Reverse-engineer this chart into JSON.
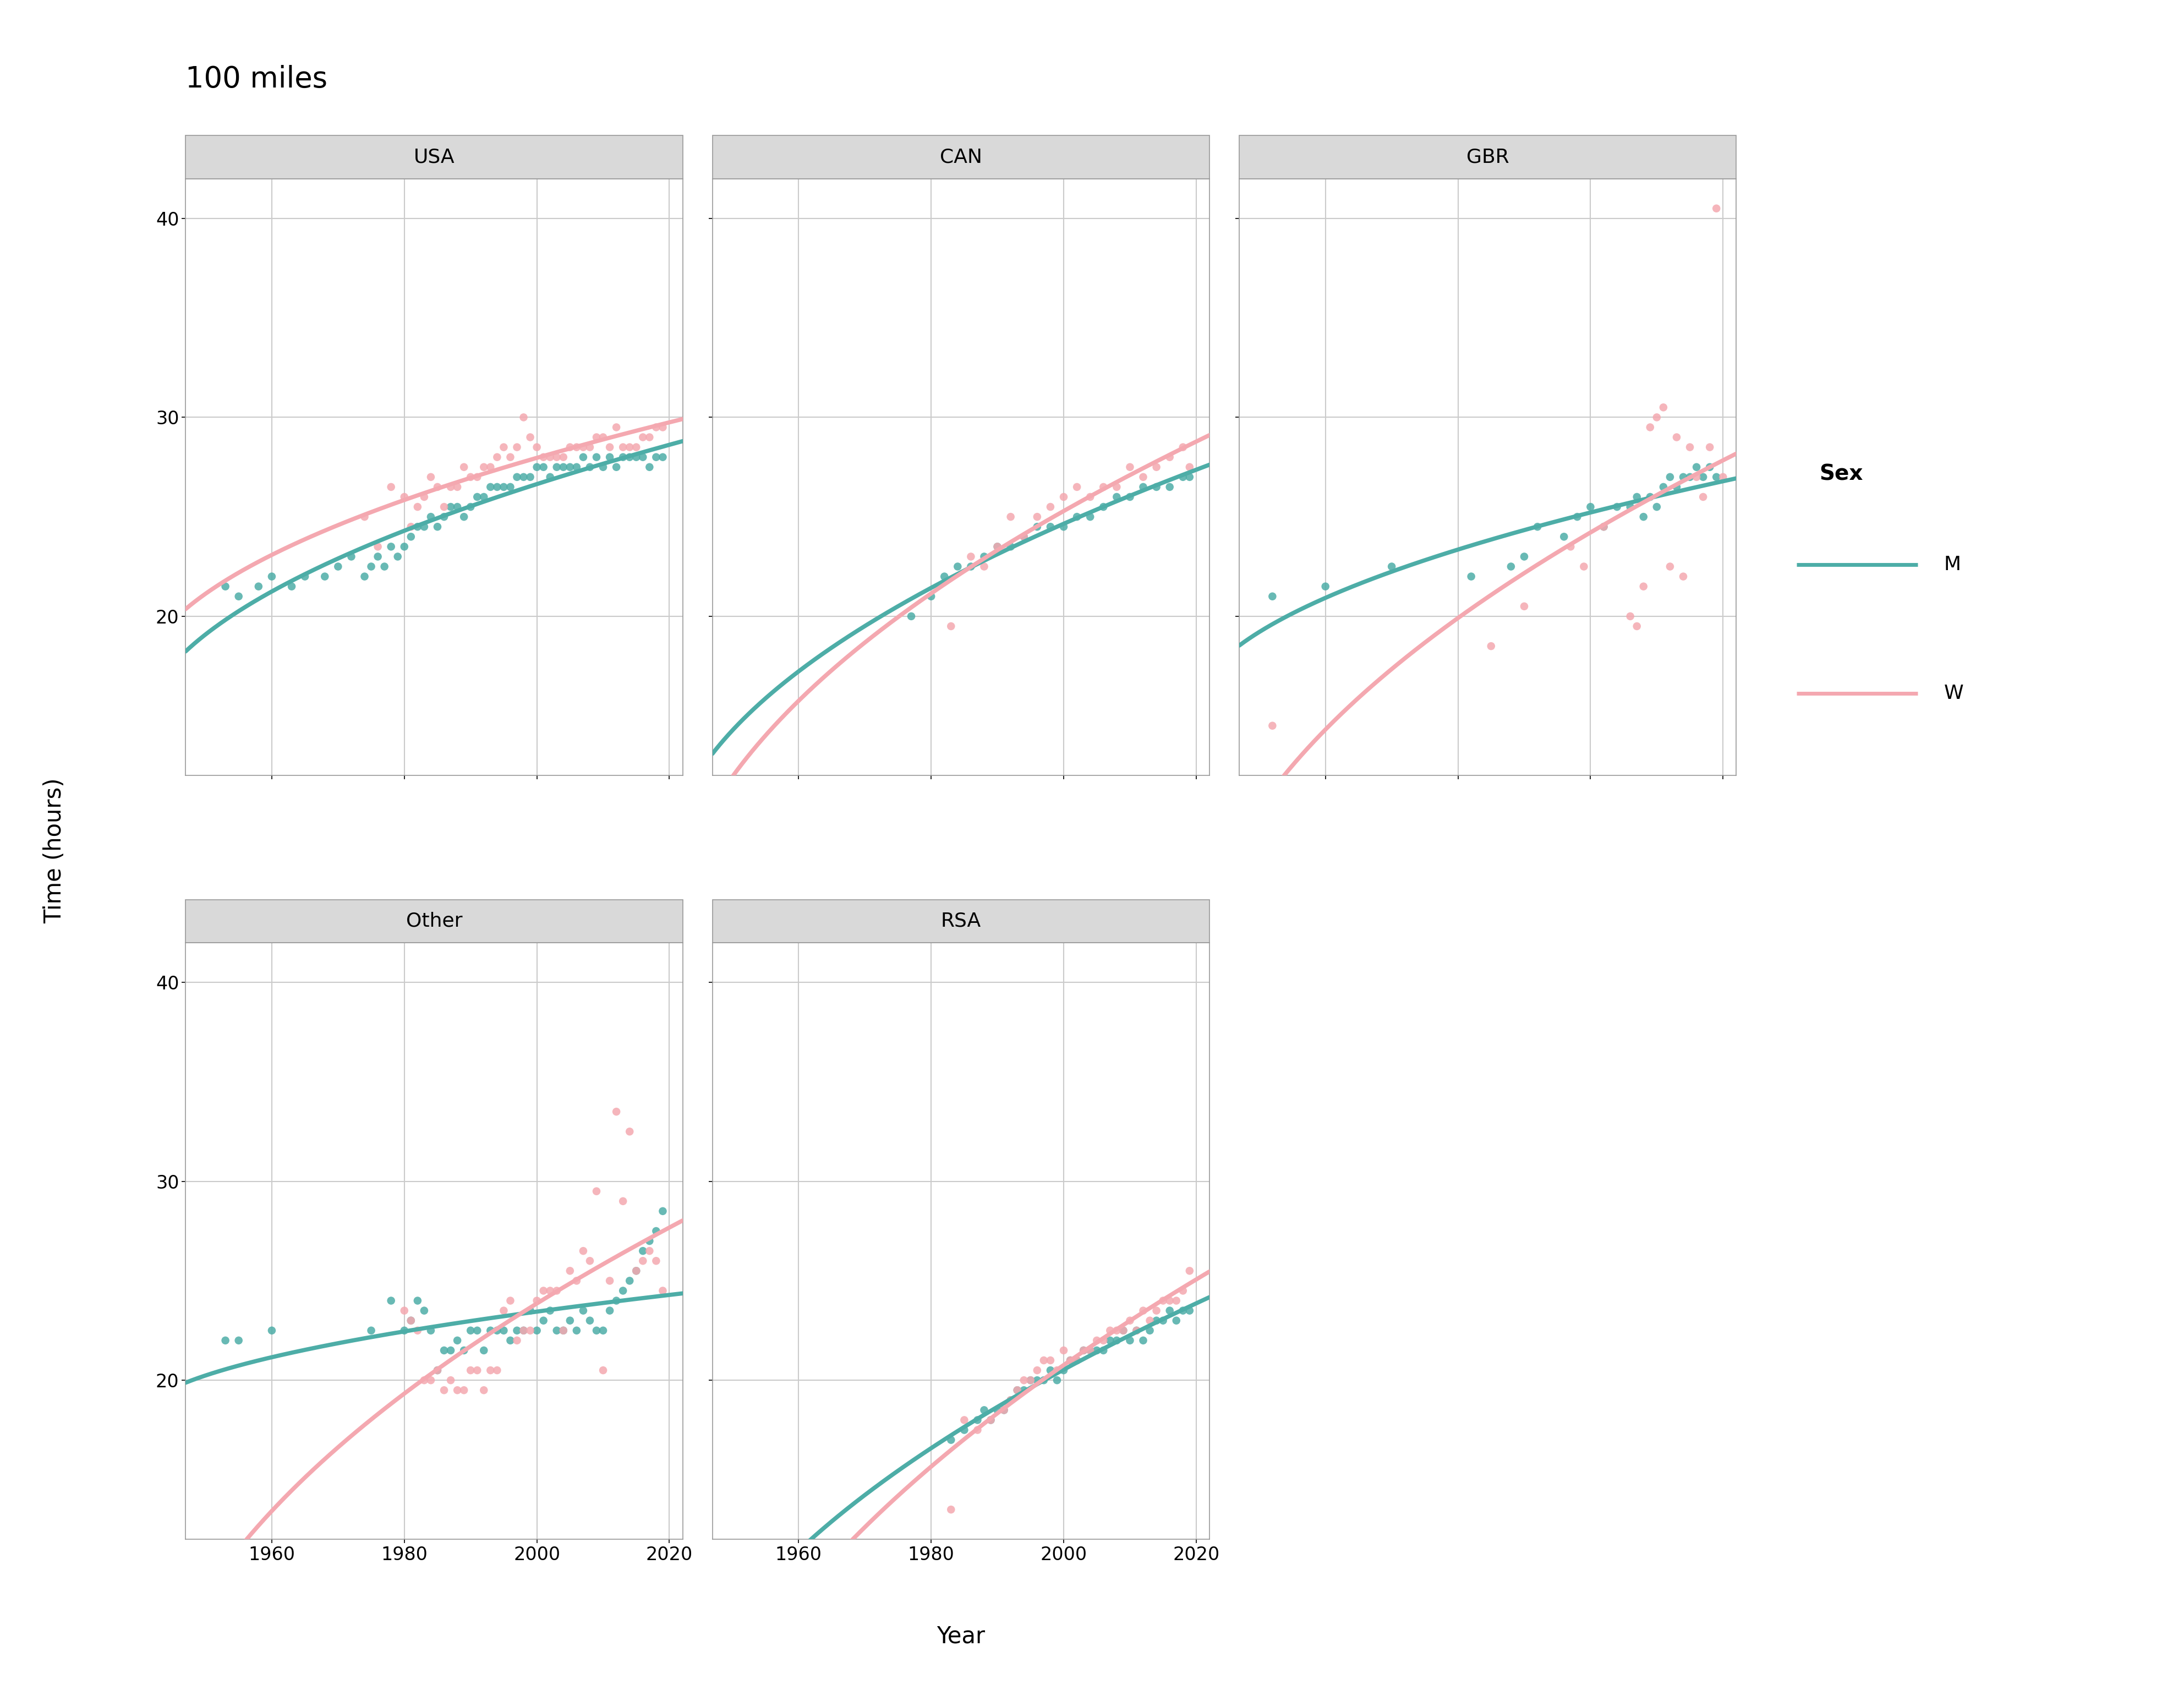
{
  "title": "100 miles",
  "xlabel": "Year",
  "ylabel": "Time (hours)",
  "color_M": "#4DADA7",
  "color_W": "#F4A8B0",
  "panel_bg": "#FFFFFF",
  "strip_bg": "#D9D9D9",
  "grid_color": "#CBCBCB",
  "fig_bg": "#FFFFFF",
  "xticks": [
    1960,
    1980,
    2000,
    2020
  ],
  "yticks": [
    20,
    30,
    40
  ],
  "ylim": [
    12,
    42
  ],
  "xlim": [
    1947,
    2022
  ],
  "legend_title": "Sex",
  "legend_entries": [
    "M",
    "W"
  ],
  "USA_M_x": [
    1953,
    1955,
    1958,
    1960,
    1963,
    1965,
    1968,
    1970,
    1972,
    1974,
    1975,
    1976,
    1977,
    1978,
    1979,
    1980,
    1981,
    1982,
    1983,
    1984,
    1985,
    1986,
    1987,
    1988,
    1989,
    1990,
    1991,
    1992,
    1993,
    1994,
    1995,
    1996,
    1997,
    1998,
    1999,
    2000,
    2001,
    2002,
    2003,
    2004,
    2005,
    2006,
    2007,
    2008,
    2009,
    2010,
    2011,
    2012,
    2013,
    2014,
    2015,
    2016,
    2017,
    2018,
    2019
  ],
  "USA_M_y": [
    21.5,
    21.0,
    21.5,
    22.0,
    21.5,
    22.0,
    22.0,
    22.5,
    23.0,
    22.0,
    22.5,
    23.0,
    22.5,
    23.5,
    23.0,
    23.5,
    24.0,
    24.5,
    24.5,
    25.0,
    24.5,
    25.0,
    25.5,
    25.5,
    25.0,
    25.5,
    26.0,
    26.0,
    26.5,
    26.5,
    26.5,
    26.5,
    27.0,
    27.0,
    27.0,
    27.5,
    27.5,
    27.0,
    27.5,
    27.5,
    27.5,
    27.5,
    28.0,
    27.5,
    28.0,
    27.5,
    28.0,
    27.5,
    28.0,
    28.0,
    28.0,
    28.0,
    27.5,
    28.0,
    28.0
  ],
  "USA_W_x": [
    1974,
    1976,
    1978,
    1980,
    1981,
    1982,
    1983,
    1984,
    1985,
    1986,
    1987,
    1988,
    1989,
    1990,
    1991,
    1992,
    1993,
    1994,
    1995,
    1996,
    1997,
    1998,
    1999,
    2000,
    2001,
    2002,
    2003,
    2004,
    2005,
    2006,
    2007,
    2008,
    2009,
    2010,
    2011,
    2012,
    2013,
    2014,
    2015,
    2016,
    2017,
    2018,
    2019
  ],
  "USA_W_y": [
    25.0,
    23.5,
    26.5,
    26.0,
    24.5,
    25.5,
    26.0,
    27.0,
    26.5,
    25.5,
    26.5,
    26.5,
    27.5,
    27.0,
    27.0,
    27.5,
    27.5,
    28.0,
    28.5,
    28.0,
    28.5,
    30.0,
    29.0,
    28.5,
    28.0,
    28.0,
    28.0,
    28.0,
    28.5,
    28.5,
    28.5,
    28.5,
    29.0,
    29.0,
    28.5,
    29.5,
    28.5,
    28.5,
    28.5,
    29.0,
    29.0,
    29.5,
    29.5
  ],
  "CAN_M_x": [
    1977,
    1980,
    1982,
    1984,
    1986,
    1988,
    1990,
    1992,
    1994,
    1996,
    1998,
    2000,
    2002,
    2004,
    2006,
    2008,
    2010,
    2012,
    2014,
    2016,
    2018,
    2019
  ],
  "CAN_M_y": [
    20.0,
    21.0,
    22.0,
    22.5,
    22.5,
    23.0,
    23.5,
    23.5,
    24.0,
    24.5,
    24.5,
    24.5,
    25.0,
    25.0,
    25.5,
    26.0,
    26.0,
    26.5,
    26.5,
    26.5,
    27.0,
    27.0
  ],
  "CAN_W_x": [
    1983,
    1986,
    1988,
    1990,
    1992,
    1994,
    1996,
    1998,
    2000,
    2002,
    2004,
    2006,
    2008,
    2010,
    2012,
    2014,
    2016,
    2018,
    2019
  ],
  "CAN_W_y": [
    19.5,
    23.0,
    22.5,
    23.5,
    25.0,
    24.0,
    25.0,
    25.5,
    26.0,
    26.5,
    26.0,
    26.5,
    26.5,
    27.5,
    27.0,
    27.5,
    28.0,
    28.5,
    27.5
  ],
  "GBR_M_x": [
    1952,
    1960,
    1970,
    1982,
    1988,
    1990,
    1992,
    1996,
    1998,
    2000,
    2002,
    2004,
    2006,
    2007,
    2008,
    2009,
    2010,
    2011,
    2012,
    2013,
    2014,
    2015,
    2016,
    2017,
    2018,
    2019
  ],
  "GBR_M_y": [
    21.0,
    21.5,
    22.5,
    22.0,
    22.5,
    23.0,
    24.5,
    24.0,
    25.0,
    25.5,
    24.5,
    25.5,
    25.5,
    26.0,
    25.0,
    26.0,
    25.5,
    26.5,
    27.0,
    26.5,
    27.0,
    27.0,
    27.5,
    27.0,
    27.5,
    27.0
  ],
  "GBR_W_x": [
    1952,
    1985,
    1990,
    1997,
    1999,
    2002,
    2006,
    2007,
    2008,
    2009,
    2010,
    2011,
    2012,
    2013,
    2014,
    2015,
    2016,
    2017,
    2018,
    2019,
    2020
  ],
  "GBR_W_y": [
    14.5,
    18.5,
    20.5,
    23.5,
    22.5,
    24.5,
    20.0,
    19.5,
    21.5,
    29.5,
    30.0,
    30.5,
    22.5,
    29.0,
    22.0,
    28.5,
    27.0,
    26.0,
    28.5,
    40.5,
    27.0
  ],
  "Other_M_x": [
    1953,
    1955,
    1960,
    1975,
    1978,
    1980,
    1981,
    1982,
    1983,
    1984,
    1985,
    1986,
    1987,
    1988,
    1989,
    1990,
    1991,
    1992,
    1993,
    1994,
    1995,
    1996,
    1997,
    1998,
    1999,
    2000,
    2001,
    2002,
    2003,
    2004,
    2005,
    2006,
    2007,
    2008,
    2009,
    2010,
    2011,
    2012,
    2013,
    2014,
    2015,
    2016,
    2017,
    2018,
    2019
  ],
  "Other_M_y": [
    22.0,
    22.0,
    22.5,
    22.5,
    24.0,
    22.5,
    23.0,
    24.0,
    23.5,
    22.5,
    20.5,
    21.5,
    21.5,
    22.0,
    21.5,
    22.5,
    22.5,
    21.5,
    22.5,
    22.5,
    22.5,
    22.0,
    22.5,
    22.5,
    23.5,
    22.5,
    23.0,
    23.5,
    22.5,
    22.5,
    23.0,
    22.5,
    23.5,
    23.0,
    22.5,
    22.5,
    23.5,
    24.0,
    24.5,
    25.0,
    25.5,
    26.5,
    27.0,
    27.5,
    28.5
  ],
  "Other_W_x": [
    1980,
    1981,
    1982,
    1983,
    1984,
    1985,
    1986,
    1987,
    1988,
    1989,
    1990,
    1991,
    1992,
    1993,
    1994,
    1995,
    1996,
    1997,
    1998,
    1999,
    2000,
    2001,
    2002,
    2003,
    2004,
    2005,
    2006,
    2007,
    2008,
    2009,
    2010,
    2011,
    2012,
    2013,
    2014,
    2015,
    2016,
    2017,
    2018,
    2019
  ],
  "Other_W_y": [
    23.5,
    23.0,
    22.5,
    20.0,
    20.0,
    20.5,
    19.5,
    20.0,
    19.5,
    19.5,
    20.5,
    20.5,
    19.5,
    20.5,
    20.5,
    23.5,
    24.0,
    22.0,
    22.5,
    22.5,
    24.0,
    24.5,
    24.5,
    24.5,
    22.5,
    25.5,
    25.0,
    26.5,
    26.0,
    29.5,
    20.5,
    25.0,
    33.5,
    29.0,
    32.5,
    25.5,
    26.0,
    26.5,
    26.0,
    24.5
  ],
  "RSA_M_x": [
    1983,
    1985,
    1987,
    1988,
    1989,
    1990,
    1991,
    1992,
    1993,
    1994,
    1995,
    1996,
    1997,
    1998,
    1999,
    2000,
    2001,
    2002,
    2003,
    2004,
    2005,
    2006,
    2007,
    2008,
    2009,
    2010,
    2011,
    2012,
    2013,
    2014,
    2015,
    2016,
    2017,
    2018,
    2019
  ],
  "RSA_M_y": [
    17.0,
    17.5,
    18.0,
    18.5,
    18.0,
    18.5,
    18.5,
    19.0,
    19.5,
    19.5,
    20.0,
    20.0,
    20.0,
    20.5,
    20.0,
    20.5,
    21.0,
    21.0,
    21.5,
    21.5,
    21.5,
    21.5,
    22.0,
    22.0,
    22.5,
    22.0,
    22.5,
    22.0,
    22.5,
    23.0,
    23.0,
    23.5,
    23.0,
    23.5,
    23.5
  ],
  "RSA_W_x": [
    1983,
    1985,
    1987,
    1989,
    1991,
    1992,
    1993,
    1994,
    1995,
    1996,
    1997,
    1998,
    1999,
    2000,
    2001,
    2002,
    2003,
    2004,
    2005,
    2006,
    2007,
    2008,
    2009,
    2010,
    2011,
    2012,
    2013,
    2014,
    2015,
    2016,
    2017,
    2018,
    2019
  ],
  "RSA_W_y": [
    13.5,
    18.0,
    17.5,
    18.0,
    18.5,
    19.0,
    19.5,
    20.0,
    20.0,
    20.5,
    21.0,
    21.0,
    20.5,
    21.5,
    21.0,
    21.0,
    21.5,
    21.5,
    22.0,
    22.0,
    22.5,
    22.5,
    22.5,
    23.0,
    22.5,
    23.5,
    23.0,
    23.5,
    24.0,
    24.0,
    24.0,
    24.5,
    25.5
  ]
}
